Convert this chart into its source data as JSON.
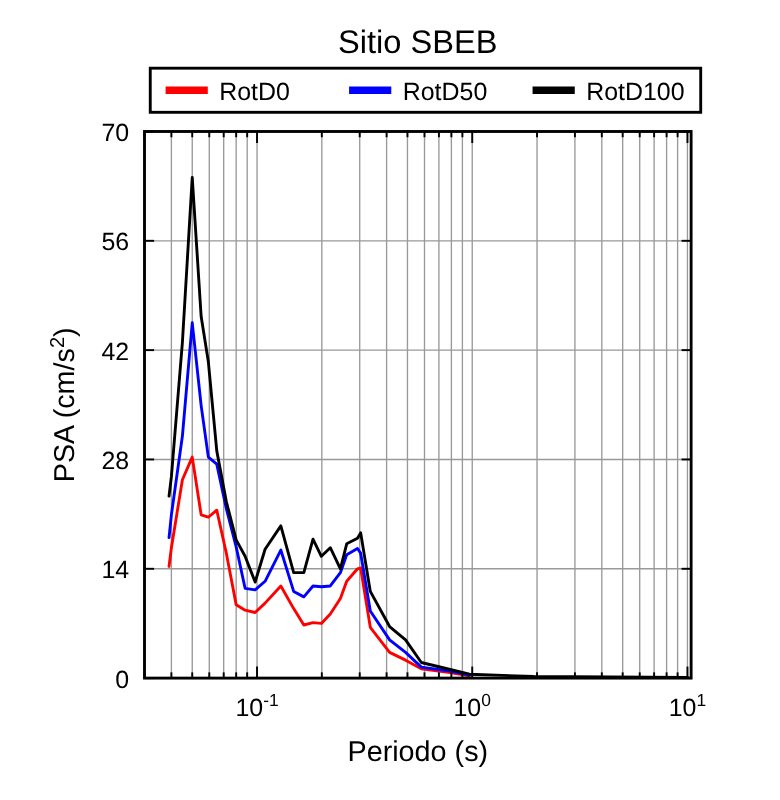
{
  "chart_data": {
    "type": "line",
    "title": "Sitio SBEB",
    "xlabel": "Periodo (s)",
    "ylabel": "PSA (cm/s$^{2}$)",
    "x": [
      0.039,
      0.04,
      0.045,
      0.05,
      0.055,
      0.0594,
      0.065,
      0.072,
      0.08,
      0.088,
      0.098,
      0.109,
      0.129,
      0.148,
      0.165,
      0.182,
      0.199,
      0.219,
      0.244,
      0.261,
      0.293,
      0.303,
      0.336,
      0.413,
      0.49,
      0.58,
      0.79,
      0.97,
      1.93,
      10
    ],
    "series": [
      {
        "name": "RotD0",
        "color": "#ff0000",
        "values": [
          14.3,
          16.7,
          25.4,
          28.3,
          20.9,
          20.6,
          21.5,
          16.0,
          9.4,
          8.7,
          8.4,
          9.6,
          11.8,
          8.9,
          6.8,
          7.1,
          7.0,
          8.2,
          10.2,
          12.4,
          14.0,
          14.1,
          6.5,
          3.3,
          2.3,
          1.2,
          0.7,
          0.3,
          null,
          null
        ]
      },
      {
        "name": "RotD50",
        "color": "#0000ff",
        "values": [
          18.0,
          20.9,
          31.0,
          45.5,
          34.9,
          28.3,
          27.4,
          21.7,
          16.8,
          11.5,
          11.3,
          12.4,
          16.4,
          11.1,
          10.4,
          11.8,
          11.7,
          11.8,
          13.5,
          15.8,
          16.6,
          16.0,
          8.6,
          4.9,
          3.3,
          1.4,
          0.9,
          0.4,
          null,
          null
        ]
      },
      {
        "name": "RotD100",
        "color": "#000000",
        "values": [
          23.3,
          25.8,
          43.0,
          64.1,
          46.3,
          40.5,
          29.1,
          22.6,
          17.7,
          15.6,
          12.3,
          16.5,
          19.5,
          13.5,
          13.5,
          17.8,
          15.6,
          16.7,
          14.0,
          17.2,
          17.9,
          18.6,
          11.1,
          6.6,
          4.9,
          2.0,
          1.1,
          0.5,
          0.2,
          0.1
        ]
      }
    ],
    "log": "x",
    "xlim": [
      0.03,
      10.4
    ],
    "ylim": [
      0,
      70
    ],
    "yticks": [
      0,
      14,
      28,
      42,
      56,
      70
    ],
    "xticks": [
      {
        "value": 0.03,
        "label": null
      },
      {
        "value": 0.04,
        "label": null
      },
      {
        "value": 0.05,
        "label": null
      },
      {
        "value": 0.06,
        "label": null
      },
      {
        "value": 0.07,
        "label": null
      },
      {
        "value": 0.08,
        "label": null
      },
      {
        "value": 0.09,
        "label": null
      },
      {
        "value": 0.1,
        "label": "10$^{-1}$"
      },
      {
        "value": 0.2,
        "label": null
      },
      {
        "value": 0.3,
        "label": null
      },
      {
        "value": 0.4,
        "label": null
      },
      {
        "value": 0.5,
        "label": null
      },
      {
        "value": 0.6,
        "label": null
      },
      {
        "value": 0.7,
        "label": null
      },
      {
        "value": 0.8,
        "label": null
      },
      {
        "value": 0.9,
        "label": null
      },
      {
        "value": 1,
        "label": "10$^{0}$"
      },
      {
        "value": 2,
        "label": null
      },
      {
        "value": 3,
        "label": null
      },
      {
        "value": 4,
        "label": null
      },
      {
        "value": 5,
        "label": null
      },
      {
        "value": 6,
        "label": null
      },
      {
        "value": 7,
        "label": null
      },
      {
        "value": 8,
        "label": null
      },
      {
        "value": 9,
        "label": null
      },
      {
        "value": 10,
        "label": "10$^{1}$"
      }
    ],
    "grid": true,
    "legend": "top",
    "line_style": "solid",
    "marker": "none"
  }
}
